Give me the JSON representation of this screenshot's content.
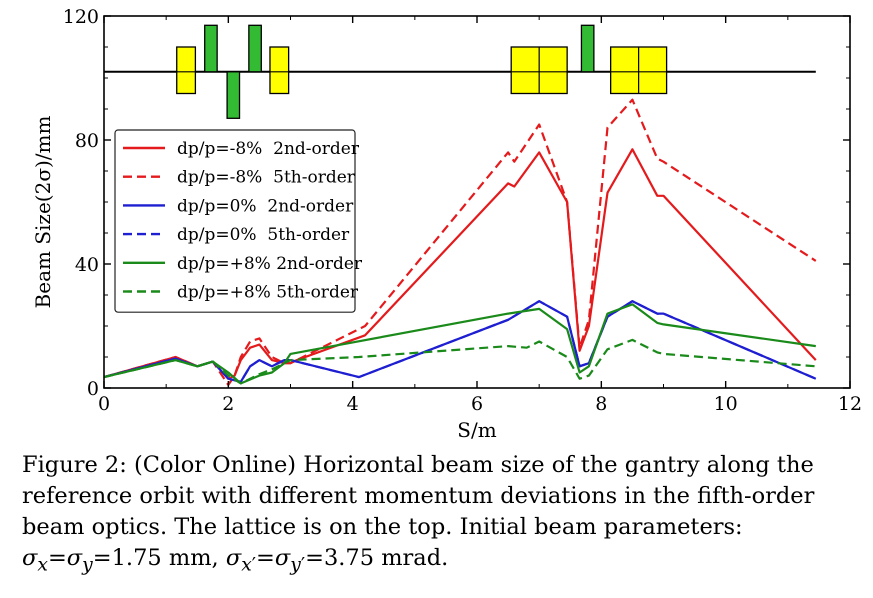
{
  "chart_data": {
    "type": "line",
    "xlabel": "S/m",
    "ylabel": "Beam Size(2σ)/mm",
    "xlim": [
      0,
      12
    ],
    "ylim": [
      0,
      120
    ],
    "xticks": [
      "0",
      "2",
      "4",
      "6",
      "8",
      "10",
      "12"
    ],
    "yticks": [
      "0",
      "40",
      "80",
      "120"
    ],
    "grid": false,
    "legend_position": "left",
    "series": [
      {
        "name": "dp/p=-8%  2nd-order",
        "color": "#e41a1c",
        "dash": "solid",
        "x": [
          0,
          1.15,
          1.5,
          1.75,
          2.0,
          2.1,
          2.2,
          2.35,
          2.5,
          2.7,
          2.9,
          3.0,
          3.1,
          4.2,
          6.5,
          6.6,
          7.0,
          7.45,
          7.65,
          7.8,
          8.1,
          8.5,
          8.9,
          9.0,
          11.45
        ],
        "y": [
          3.5,
          10,
          7,
          8.5,
          3,
          4,
          9,
          13,
          14,
          9,
          8,
          8,
          9,
          17,
          66,
          65,
          76,
          60,
          12,
          20,
          63,
          77,
          62,
          62,
          9
        ]
      },
      {
        "name": "dp/p=-8%  5th-order",
        "color": "#e41a1c",
        "dash": "dashed",
        "x": [
          0,
          1.15,
          1.5,
          1.75,
          2.0,
          2.1,
          2.2,
          2.35,
          2.5,
          2.7,
          2.9,
          3.0,
          3.1,
          4.2,
          6.5,
          6.6,
          7.0,
          7.45,
          7.65,
          7.8,
          8.1,
          8.5,
          8.9,
          9.0,
          11.45
        ],
        "y": [
          3.5,
          10,
          7,
          8.5,
          1,
          4,
          10,
          15,
          16,
          10,
          8,
          8,
          9,
          20,
          76,
          73,
          85,
          60,
          13,
          22,
          84,
          93,
          74,
          73,
          41
        ]
      },
      {
        "name": "dp/p=0%  2nd-order",
        "color": "#1f1fd2",
        "dash": "solid",
        "x": [
          0,
          1.15,
          1.5,
          1.75,
          2.0,
          2.2,
          2.35,
          2.5,
          2.7,
          2.9,
          3.0,
          4.1,
          6.5,
          7.0,
          7.45,
          7.65,
          7.8,
          8.1,
          8.5,
          8.9,
          9.0,
          11.45
        ],
        "y": [
          3.5,
          9.5,
          7,
          8.5,
          3,
          2,
          7,
          9,
          7,
          9,
          9,
          3.5,
          22,
          28,
          23,
          7,
          8,
          23,
          28,
          24,
          24,
          3
        ]
      },
      {
        "name": "dp/p=0%  5th-order",
        "color": "#1f1fd2",
        "dash": "dashed",
        "x": [
          0,
          1.15,
          1.5,
          1.75,
          2.0,
          2.2,
          2.35,
          2.5,
          2.7,
          2.9,
          3.0,
          4.1,
          6.5,
          7.0,
          7.45,
          7.65,
          7.8,
          8.1,
          8.5,
          8.9,
          9.0,
          11.45
        ],
        "y": [
          3.5,
          9.5,
          7,
          8.5,
          3,
          2,
          7,
          9,
          7,
          9,
          9,
          3.5,
          22,
          28,
          23,
          7,
          8,
          23,
          28,
          24,
          24,
          3
        ]
      },
      {
        "name": "dp/p=+8% 2nd-order",
        "color": "#1a8a1a",
        "dash": "solid",
        "x": [
          0,
          1.15,
          1.5,
          1.75,
          2.0,
          2.2,
          2.5,
          2.7,
          2.9,
          3.0,
          6.5,
          7.0,
          7.45,
          7.65,
          7.8,
          8.1,
          8.5,
          8.9,
          9.0,
          11.45
        ],
        "y": [
          3.5,
          9,
          7,
          8.5,
          5,
          1.5,
          4,
          5,
          8,
          11,
          24,
          25.5,
          19,
          5,
          7,
          24,
          27,
          21,
          20.5,
          13.5
        ]
      },
      {
        "name": "dp/p=+8% 5th-order",
        "color": "#1a8a1a",
        "dash": "dashed",
        "x": [
          0,
          1.15,
          1.5,
          1.75,
          2.0,
          2.2,
          2.5,
          2.7,
          2.9,
          3.0,
          4.1,
          6.5,
          6.8,
          7.0,
          7.45,
          7.65,
          7.8,
          8.1,
          8.5,
          8.9,
          9.0,
          11.45
        ],
        "y": [
          3.5,
          9,
          7,
          8.5,
          4,
          1.5,
          4.5,
          6,
          8,
          9,
          10,
          13.5,
          13,
          15,
          10,
          3,
          4,
          12.5,
          15.5,
          11.5,
          11,
          7
        ]
      }
    ],
    "lattice": {
      "baseline_y": 102,
      "color_quad": "#ffff00",
      "color_dipole_small": "#33bb33",
      "elements": [
        {
          "kind": "quad",
          "x0": 1.17,
          "x1": 1.47,
          "y0": 95,
          "y1": 110,
          "cells_x": 1
        },
        {
          "kind": "dipole",
          "x0": 1.62,
          "x1": 1.82,
          "y0": 102,
          "y1": 117
        },
        {
          "kind": "dipole",
          "x0": 1.98,
          "x1": 2.18,
          "y0": 87,
          "y1": 102
        },
        {
          "kind": "dipole",
          "x0": 2.33,
          "x1": 2.53,
          "y0": 102,
          "y1": 117
        },
        {
          "kind": "quad",
          "x0": 2.67,
          "x1": 2.97,
          "y0": 95,
          "y1": 110,
          "cells_x": 1
        },
        {
          "kind": "quad",
          "x0": 6.55,
          "x1": 7.45,
          "y0": 95,
          "y1": 110,
          "cells_x": 2
        },
        {
          "kind": "dipole",
          "x0": 7.68,
          "x1": 7.88,
          "y0": 102,
          "y1": 117
        },
        {
          "kind": "quad",
          "x0": 8.15,
          "x1": 9.05,
          "y0": 95,
          "y1": 110,
          "cells_x": 2
        }
      ],
      "x_start": 0,
      "x_end": 11.45
    }
  },
  "caption": {
    "lines": [
      "Figure 2: (Color Online) Horizontal beam size of the gantry along the",
      "reference orbit with different momentum deviations in the fifth-order",
      "beam optics. The lattice is on the top. Initial beam parameters:"
    ],
    "last_line_html": "<i>σ</i><sub><i>x</i></sub>=<i>σ</i><sub><i>y</i></sub>=1.75 mm, <i>σ</i><sub><i>x</i>′</sub>=<i>σ</i><sub><i>y</i>′</sub>=3.75 mrad."
  }
}
